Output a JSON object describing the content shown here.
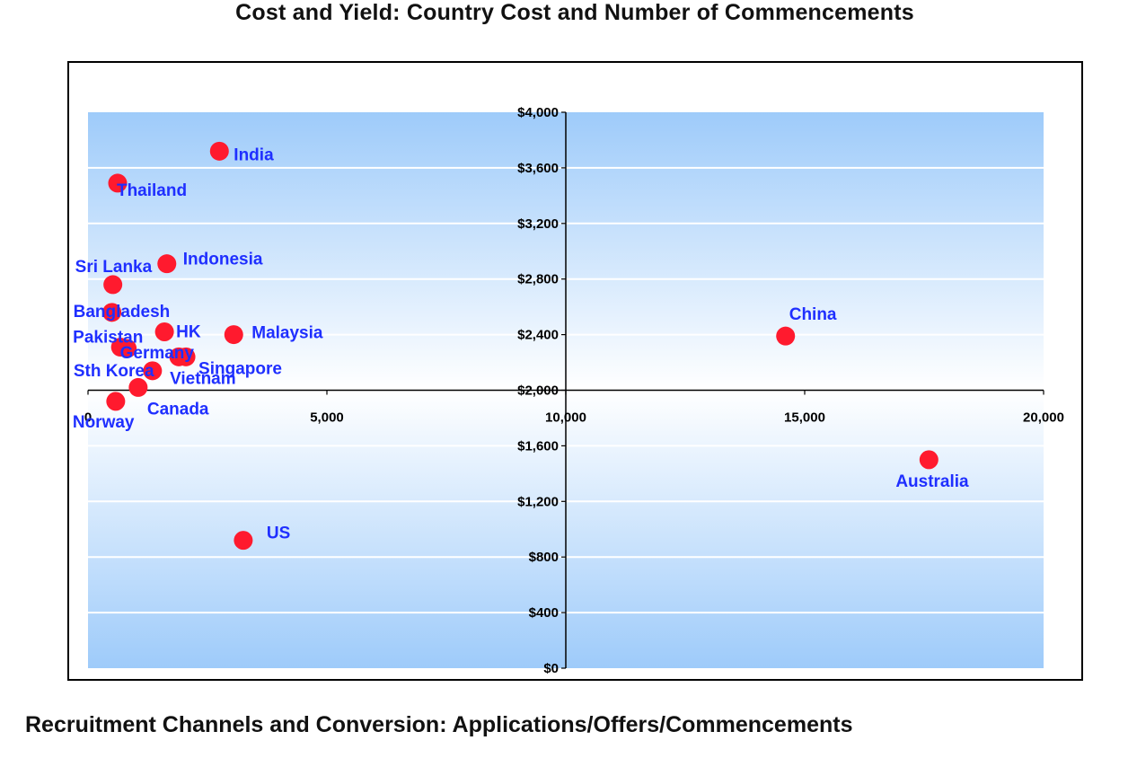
{
  "page": {
    "title": "Cost and Yield: Country Cost and Number of Commencements",
    "bottom_title": "Recruitment Channels and Conversion: Applications/Offers/Commencements"
  },
  "chart_data": {
    "type": "scatter",
    "title": "Cost and Yield: Country Cost and Number of Commencements",
    "xlabel": "",
    "ylabel": "",
    "xlim": [
      0,
      20000
    ],
    "ylim": [
      0,
      4000
    ],
    "axis_cross": {
      "x": 10000,
      "y": 2000
    },
    "x_ticks": [
      0,
      5000,
      10000,
      15000,
      20000
    ],
    "x_tick_labels": [
      "0",
      "5,000",
      "10,000",
      "15,000",
      "20,000"
    ],
    "y_ticks": [
      0,
      400,
      800,
      1200,
      1600,
      2000,
      2400,
      2800,
      3200,
      3600,
      4000
    ],
    "y_tick_labels": [
      "$0",
      "$400",
      "$800",
      "$1,200",
      "$1,600",
      "$2,000",
      "$2,400",
      "$2,800",
      "$3,200",
      "$3,600",
      "$4,000"
    ],
    "grid": true,
    "colors": {
      "point": "#ff1a2e",
      "label": "#1f2fff",
      "band_edge": "#9ecbfa",
      "band_mid": "#ffffff"
    },
    "points": [
      {
        "label": "India",
        "x": 2750,
        "y": 3720
      },
      {
        "label": "Thailand",
        "x": 620,
        "y": 3490
      },
      {
        "label": "Indonesia",
        "x": 1650,
        "y": 2910
      },
      {
        "label": "Sri Lanka",
        "x": 520,
        "y": 2760
      },
      {
        "label": "Bangladesh",
        "x": 500,
        "y": 2560
      },
      {
        "label": "HK",
        "x": 1600,
        "y": 2420
      },
      {
        "label": "Malaysia",
        "x": 3050,
        "y": 2400
      },
      {
        "label": "Pakistan",
        "x": 680,
        "y": 2310
      },
      {
        "label": "Germany",
        "x": 820,
        "y": 2300
      },
      {
        "label": "Singapore",
        "x": 2050,
        "y": 2240
      },
      {
        "label": "Vietnam",
        "x": 1900,
        "y": 2240
      },
      {
        "label": "Sth Korea",
        "x": 1350,
        "y": 2140
      },
      {
        "label": "Canada",
        "x": 1050,
        "y": 2020
      },
      {
        "label": "Norway",
        "x": 580,
        "y": 1920
      },
      {
        "label": "US",
        "x": 3250,
        "y": 920
      },
      {
        "label": "China",
        "x": 14600,
        "y": 2390
      },
      {
        "label": "Australia",
        "x": 17600,
        "y": 1500
      }
    ]
  }
}
